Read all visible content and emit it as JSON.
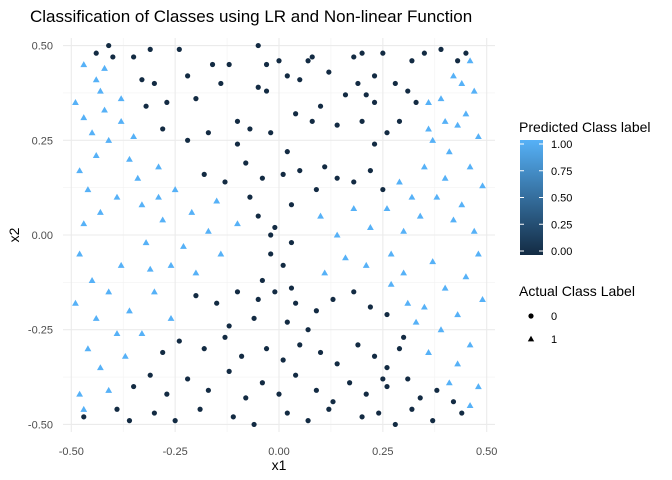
{
  "chart_data": {
    "type": "scatter",
    "title": "Classification of Classes using LR and Non-linear Function",
    "xlabel": "x1",
    "ylabel": "x2",
    "xlim": [
      -0.52,
      0.52
    ],
    "ylim": [
      -0.52,
      0.52
    ],
    "xticks": [
      -0.5,
      -0.25,
      0.0,
      0.25,
      0.5
    ],
    "xtick_labels": [
      "-0.50",
      "-0.25",
      "0.00",
      "0.25",
      "0.50"
    ],
    "yticks": [
      -0.5,
      -0.25,
      0.0,
      0.25,
      0.5
    ],
    "ytick_labels": [
      "-0.50",
      "-0.25",
      "0.00",
      "0.25",
      "0.50"
    ],
    "grid": true,
    "color_legend": {
      "title": "Predicted Class label",
      "ticks": [
        "0.00",
        "0.25",
        "0.50",
        "0.75",
        "1.00"
      ],
      "low_color": "#132B43",
      "high_color": "#56B1F7"
    },
    "shape_legend": {
      "title": "Actual Class Label",
      "entries": [
        {
          "label": "0",
          "shape": "circle"
        },
        {
          "label": "1",
          "shape": "triangle"
        }
      ]
    },
    "series": [
      {
        "name": "0",
        "shape": "circle",
        "color": "#132B43",
        "points": [
          [
            -0.44,
            0.48
          ],
          [
            -0.41,
            0.5
          ],
          [
            -0.4,
            0.47
          ],
          [
            -0.35,
            0.47
          ],
          [
            -0.31,
            0.49
          ],
          [
            -0.24,
            0.49
          ],
          [
            -0.16,
            0.45
          ],
          [
            -0.12,
            0.45
          ],
          [
            -0.05,
            0.5
          ],
          [
            -0.03,
            0.45
          ],
          [
            0.0,
            0.46
          ],
          [
            0.07,
            0.46
          ],
          [
            0.08,
            0.47
          ],
          [
            0.18,
            0.47
          ],
          [
            0.2,
            0.48
          ],
          [
            0.25,
            0.48
          ],
          [
            0.32,
            0.46
          ],
          [
            0.35,
            0.48
          ],
          [
            0.39,
            0.49
          ],
          [
            0.43,
            0.46
          ],
          [
            0.45,
            0.48
          ],
          [
            -0.33,
            0.41
          ],
          [
            -0.3,
            0.4
          ],
          [
            -0.27,
            0.35
          ],
          [
            -0.32,
            0.34
          ],
          [
            -0.2,
            0.36
          ],
          [
            -0.22,
            0.42
          ],
          [
            -0.14,
            0.4
          ],
          [
            -0.05,
            0.39
          ],
          [
            0.02,
            0.42
          ],
          [
            0.05,
            0.41
          ],
          [
            0.12,
            0.43
          ],
          [
            0.16,
            0.37
          ],
          [
            0.19,
            0.4
          ],
          [
            0.21,
            0.37
          ],
          [
            0.23,
            0.42
          ],
          [
            0.28,
            0.4
          ],
          [
            0.31,
            0.38
          ],
          [
            0.33,
            0.35
          ],
          [
            0.23,
            0.35
          ],
          [
            -0.03,
            0.38
          ],
          [
            -0.28,
            0.28
          ],
          [
            -0.22,
            0.25
          ],
          [
            -0.17,
            0.27
          ],
          [
            -0.1,
            0.3
          ],
          [
            -0.07,
            0.28
          ],
          [
            -0.02,
            0.27
          ],
          [
            0.04,
            0.32
          ],
          [
            0.08,
            0.3
          ],
          [
            0.1,
            0.34
          ],
          [
            0.14,
            0.29
          ],
          [
            0.2,
            0.3
          ],
          [
            0.23,
            0.24
          ],
          [
            0.26,
            0.27
          ],
          [
            0.29,
            0.3
          ],
          [
            -0.1,
            0.24
          ],
          [
            0.02,
            0.22
          ],
          [
            -0.18,
            0.16
          ],
          [
            -0.13,
            0.14
          ],
          [
            -0.08,
            0.19
          ],
          [
            -0.04,
            0.15
          ],
          [
            0.01,
            0.16
          ],
          [
            0.05,
            0.17
          ],
          [
            0.11,
            0.18
          ],
          [
            0.14,
            0.15
          ],
          [
            0.18,
            0.14
          ],
          [
            0.22,
            0.17
          ],
          [
            0.25,
            0.12
          ],
          [
            -0.07,
            0.1
          ],
          [
            0.03,
            0.08
          ],
          [
            0.09,
            0.12
          ],
          [
            -0.05,
            0.05
          ],
          [
            -0.01,
            0.02
          ],
          [
            0.03,
            -0.02
          ],
          [
            -0.02,
            -0.05
          ],
          [
            0.01,
            -0.08
          ],
          [
            -0.04,
            -0.12
          ],
          [
            0.03,
            -0.14
          ],
          [
            -0.02,
            0.0
          ],
          [
            -0.2,
            -0.16
          ],
          [
            -0.15,
            -0.18
          ],
          [
            -0.1,
            -0.15
          ],
          [
            -0.05,
            -0.17
          ],
          [
            -0.01,
            -0.15
          ],
          [
            0.04,
            -0.18
          ],
          [
            0.09,
            -0.2
          ],
          [
            0.13,
            -0.17
          ],
          [
            0.18,
            -0.15
          ],
          [
            0.22,
            -0.19
          ],
          [
            0.26,
            -0.21
          ],
          [
            -0.12,
            -0.24
          ],
          [
            -0.06,
            -0.22
          ],
          [
            0.02,
            -0.23
          ],
          [
            0.07,
            -0.25
          ],
          [
            -0.28,
            -0.31
          ],
          [
            -0.24,
            -0.28
          ],
          [
            -0.18,
            -0.3
          ],
          [
            -0.13,
            -0.27
          ],
          [
            -0.09,
            -0.32
          ],
          [
            -0.03,
            -0.3
          ],
          [
            0.01,
            -0.33
          ],
          [
            0.05,
            -0.29
          ],
          [
            0.1,
            -0.31
          ],
          [
            0.14,
            -0.34
          ],
          [
            0.19,
            -0.29
          ],
          [
            0.23,
            -0.32
          ],
          [
            0.26,
            -0.35
          ],
          [
            0.29,
            -0.3
          ],
          [
            0.3,
            -0.27
          ],
          [
            0.25,
            -0.38
          ],
          [
            -0.35,
            -0.4
          ],
          [
            -0.31,
            -0.37
          ],
          [
            -0.27,
            -0.42
          ],
          [
            -0.22,
            -0.38
          ],
          [
            -0.17,
            -0.41
          ],
          [
            -0.12,
            -0.36
          ],
          [
            -0.08,
            -0.43
          ],
          [
            -0.04,
            -0.39
          ],
          [
            0.0,
            -0.42
          ],
          [
            0.04,
            -0.37
          ],
          [
            0.09,
            -0.41
          ],
          [
            0.13,
            -0.44
          ],
          [
            0.17,
            -0.39
          ],
          [
            0.21,
            -0.42
          ],
          [
            0.26,
            -0.4
          ],
          [
            0.31,
            -0.38
          ],
          [
            0.34,
            -0.43
          ],
          [
            0.38,
            -0.41
          ],
          [
            0.42,
            -0.44
          ],
          [
            -0.47,
            -0.48
          ],
          [
            -0.39,
            -0.46
          ],
          [
            -0.36,
            -0.49
          ],
          [
            -0.3,
            -0.47
          ],
          [
            -0.25,
            -0.49
          ],
          [
            -0.19,
            -0.46
          ],
          [
            -0.11,
            -0.48
          ],
          [
            -0.06,
            -0.5
          ],
          [
            0.02,
            -0.47
          ],
          [
            0.07,
            -0.49
          ],
          [
            0.12,
            -0.46
          ],
          [
            0.2,
            -0.48
          ],
          [
            0.24,
            -0.47
          ],
          [
            0.28,
            -0.5
          ],
          [
            0.32,
            -0.46
          ],
          [
            0.37,
            -0.49
          ],
          [
            0.44,
            -0.47
          ]
        ]
      },
      {
        "name": "1",
        "shape": "triangle",
        "color": "#56B1F7",
        "points": [
          [
            -0.49,
            0.35
          ],
          [
            -0.47,
            0.31
          ],
          [
            -0.45,
            0.27
          ],
          [
            -0.43,
            0.38
          ],
          [
            -0.42,
            0.33
          ],
          [
            -0.44,
            0.21
          ],
          [
            -0.48,
            0.17
          ],
          [
            -0.46,
            0.12
          ],
          [
            -0.41,
            0.25
          ],
          [
            -0.38,
            0.3
          ],
          [
            -0.36,
            0.2
          ],
          [
            -0.34,
            0.15
          ],
          [
            -0.39,
            0.1
          ],
          [
            -0.43,
            0.06
          ],
          [
            -0.47,
            0.03
          ],
          [
            0.47,
            0.38
          ],
          [
            0.45,
            0.32
          ],
          [
            0.48,
            0.26
          ],
          [
            0.43,
            0.29
          ],
          [
            0.41,
            0.22
          ],
          [
            0.46,
            0.18
          ],
          [
            0.49,
            0.13
          ],
          [
            0.44,
            0.08
          ],
          [
            0.4,
            0.15
          ],
          [
            0.37,
            0.25
          ],
          [
            0.35,
            0.18
          ],
          [
            0.38,
            0.1
          ],
          [
            0.42,
            0.04
          ],
          [
            0.47,
            0.01
          ],
          [
            0.36,
            0.35
          ],
          [
            0.42,
            0.42
          ],
          [
            -0.29,
            0.18
          ],
          [
            -0.25,
            0.12
          ],
          [
            -0.21,
            0.06
          ],
          [
            -0.17,
            0.01
          ],
          [
            -0.23,
            -0.03
          ],
          [
            -0.28,
            0.04
          ],
          [
            -0.32,
            -0.02
          ],
          [
            -0.26,
            -0.08
          ],
          [
            -0.2,
            -0.1
          ],
          [
            -0.14,
            -0.05
          ],
          [
            -0.1,
            0.03
          ],
          [
            -0.15,
            0.09
          ],
          [
            0.1,
            0.05
          ],
          [
            0.14,
            0.0
          ],
          [
            0.18,
            0.07
          ],
          [
            0.22,
            0.02
          ],
          [
            0.26,
            0.07
          ],
          [
            0.3,
            0.01
          ],
          [
            0.27,
            -0.05
          ],
          [
            0.21,
            -0.08
          ],
          [
            0.16,
            -0.06
          ],
          [
            0.11,
            -0.1
          ],
          [
            0.32,
            0.1
          ],
          [
            0.3,
            -0.1
          ],
          [
            -0.48,
            -0.05
          ],
          [
            -0.45,
            -0.12
          ],
          [
            -0.49,
            -0.18
          ],
          [
            -0.44,
            -0.22
          ],
          [
            -0.41,
            -0.15
          ],
          [
            -0.38,
            -0.08
          ],
          [
            -0.36,
            -0.2
          ],
          [
            -0.39,
            -0.26
          ],
          [
            -0.46,
            -0.3
          ],
          [
            -0.43,
            -0.35
          ],
          [
            -0.48,
            -0.42
          ],
          [
            -0.41,
            -0.41
          ],
          [
            -0.37,
            -0.32
          ],
          [
            0.48,
            -0.05
          ],
          [
            0.45,
            -0.11
          ],
          [
            0.49,
            -0.17
          ],
          [
            0.43,
            -0.21
          ],
          [
            0.4,
            -0.14
          ],
          [
            0.37,
            -0.07
          ],
          [
            0.35,
            -0.19
          ],
          [
            0.39,
            -0.25
          ],
          [
            0.46,
            -0.29
          ],
          [
            0.43,
            -0.34
          ],
          [
            0.48,
            -0.4
          ],
          [
            0.41,
            -0.39
          ],
          [
            0.36,
            -0.31
          ],
          [
            0.33,
            -0.23
          ],
          [
            -0.3,
            -0.15
          ],
          [
            -0.26,
            -0.22
          ],
          [
            -0.33,
            -0.26
          ],
          [
            -0.31,
            -0.09
          ],
          [
            0.27,
            -0.13
          ],
          [
            0.31,
            -0.18
          ],
          [
            -0.47,
            0.45
          ],
          [
            -0.44,
            0.41
          ],
          [
            0.46,
            0.46
          ],
          [
            0.44,
            0.4
          ],
          [
            -0.47,
            -0.46
          ],
          [
            0.46,
            -0.45
          ],
          [
            -0.42,
            0.44
          ],
          [
            0.39,
            0.36
          ],
          [
            -0.38,
            0.36
          ],
          [
            0.4,
            0.3
          ],
          [
            -0.35,
            0.26
          ],
          [
            0.36,
            0.28
          ],
          [
            -0.33,
            0.08
          ],
          [
            0.34,
            0.05
          ],
          [
            -0.29,
            0.1
          ],
          [
            0.29,
            0.14
          ]
        ]
      }
    ]
  }
}
